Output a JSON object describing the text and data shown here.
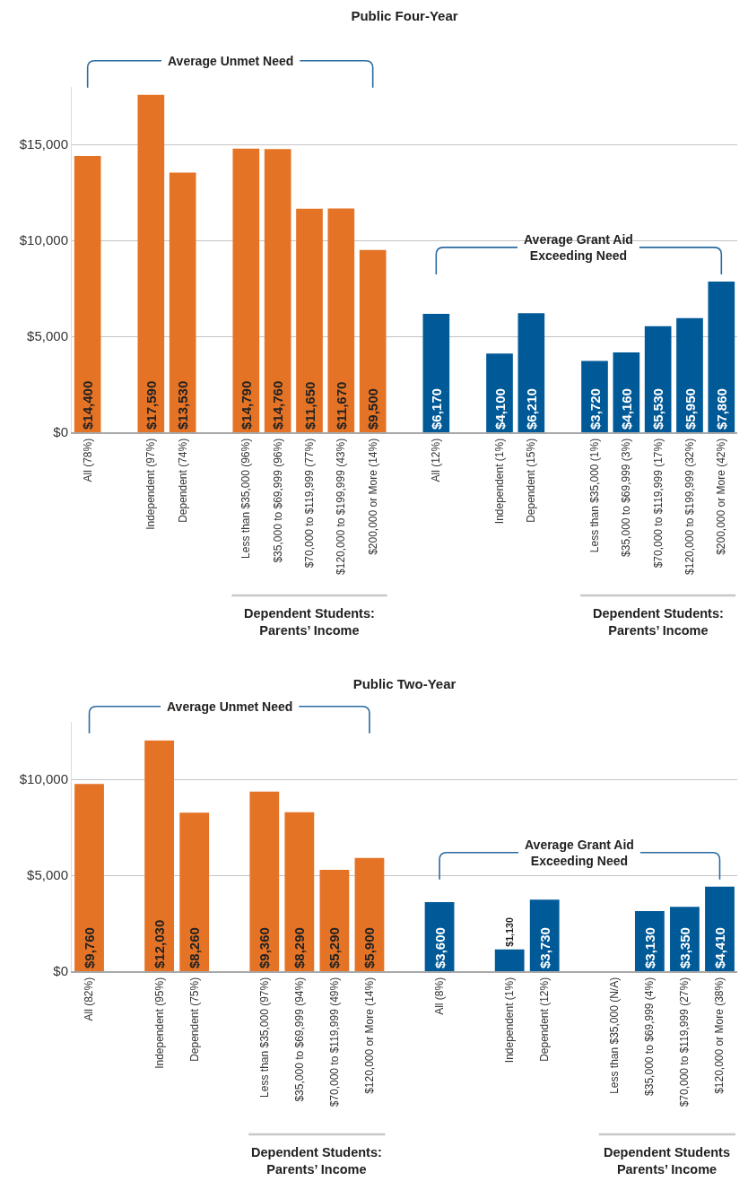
{
  "chart_data": [
    {
      "type": "bar",
      "title": "Public Four-Year",
      "categories": [
        "All (78%)",
        null,
        "Independent (97%)",
        "Dependent (74%)",
        null,
        "Less than $35,000 (96%)",
        "$35,000 to $69,999 (96%)",
        "$70,000 to $119,999 (77%)",
        "$120,000 to $199,999 (43%)",
        "$200,000 or More (14%)",
        null,
        "All (12%)",
        null,
        "Independent (1%)",
        "Dependent (15%)",
        null,
        "Less than $35,000 (1%)",
        "$35,000 to $69,999 (3%)",
        "$70,000 to $119,999 (17%)",
        "$120,000 to $199,999 (32%)",
        "$200,000 or More (42%)"
      ],
      "values": [
        14400,
        null,
        17590,
        13530,
        null,
        14790,
        14760,
        11650,
        11670,
        9500,
        null,
        6170,
        null,
        4100,
        6210,
        null,
        3720,
        4160,
        5530,
        5950,
        7860
      ],
      "colors": [
        "#e57326",
        null,
        "#e57326",
        "#e57326",
        null,
        "#e57326",
        "#e57326",
        "#e57326",
        "#e57326",
        "#e57326",
        null,
        "#015a98",
        null,
        "#015a98",
        "#015a98",
        null,
        "#015a98",
        "#015a98",
        "#015a98",
        "#015a98",
        "#015a98"
      ],
      "value_labels": [
        "$14,400",
        null,
        "$17,590",
        "$13,530",
        null,
        "$14,790",
        "$14,760",
        "$11,650",
        "$11,670",
        "$9,500",
        null,
        "$6,170",
        null,
        "$4,100",
        "$6,210",
        null,
        "$3,720",
        "$4,160",
        "$5,530",
        "$5,950",
        "$7,860"
      ],
      "ylim": [
        0,
        18000
      ],
      "yticks": [
        {
          "value": 0,
          "label": "$0"
        },
        {
          "value": 5000,
          "label": "$5,000"
        },
        {
          "value": 10000,
          "label": "$10,000"
        },
        {
          "value": 15000,
          "label": "$15,000"
        }
      ],
      "grid": "y",
      "annotations": [
        "Average Unmet Need",
        "Average Grant Aid Exceeding Need",
        "Dependent Students: Parents’ Income",
        "Dependent Students: Parents’ Income"
      ]
    },
    {
      "type": "bar",
      "title": "Public Two-Year",
      "categories": [
        "All (82%)",
        null,
        "Independent (95%)",
        "Dependent (75%)",
        null,
        "Less than $35,000 (97%)",
        "$35,000 to $69,999 (94%)",
        "$70,000 to $119,999 (49%)",
        "$120,000 or More (14%)",
        null,
        "All (8%)",
        null,
        "Independent (1%)",
        "Dependent (12%)",
        null,
        "Less than $35,000 (N/A)",
        "$35,000 to $69,999 (4%)",
        "$70,000 to $119,999 (27%)",
        "$120,000 or More (38%)"
      ],
      "values": [
        9760,
        null,
        12030,
        8260,
        null,
        9360,
        8290,
        5290,
        5900,
        null,
        3600,
        null,
        1130,
        3730,
        null,
        null,
        3130,
        3350,
        4410
      ],
      "colors": [
        "#e57326",
        null,
        "#e57326",
        "#e57326",
        null,
        "#e57326",
        "#e57326",
        "#e57326",
        "#e57326",
        null,
        "#015a98",
        null,
        "#015a98",
        "#015a98",
        null,
        null,
        "#015a98",
        "#015a98",
        "#015a98"
      ],
      "value_labels": [
        "$9,760",
        null,
        "$12,030",
        "$8,260",
        null,
        "$9,360",
        "$8,290",
        "$5,290",
        "$5,900",
        null,
        "$3,600",
        null,
        "$1,130",
        "$3,730",
        null,
        null,
        "$3,130",
        "$3,350",
        "$4,410"
      ],
      "ylim": [
        0,
        13000
      ],
      "yticks": [
        {
          "value": 0,
          "label": "$0"
        },
        {
          "value": 5000,
          "label": "$5,000"
        },
        {
          "value": 10000,
          "label": "$10,000"
        }
      ],
      "grid": "y",
      "annotations": [
        "Average Unmet Need",
        "Average Grant Aid Exceeding Need",
        "Dependent Students: Parents’ Income",
        "Dependent Students Parents’ Income"
      ]
    }
  ]
}
